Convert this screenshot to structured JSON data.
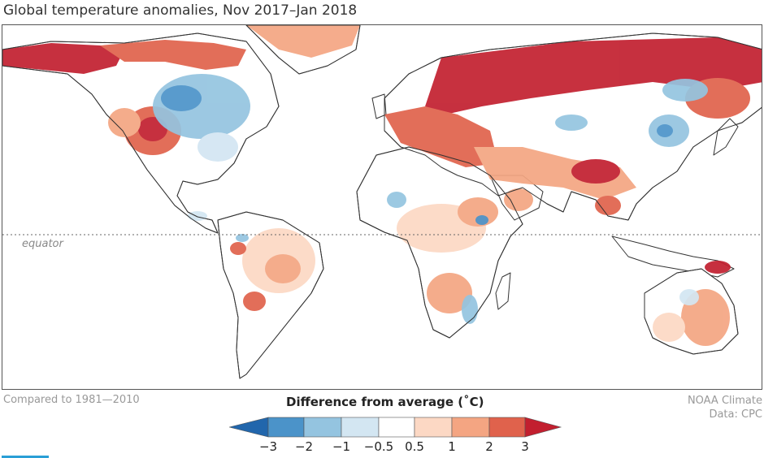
{
  "title": "Global temperature anomalies, Nov 2017–Jan 2018",
  "equator_label": "equator",
  "baseline_note": "Compared to 1981—2010",
  "legend": {
    "title": "Difference from average (˚C)",
    "ticks": [
      "−3",
      "−2",
      "−1",
      "−0.5",
      "0.5",
      "1",
      "2",
      "3"
    ],
    "colors": {
      "minus3": "#2166ac",
      "minus2": "#4b93c9",
      "minus1": "#94c4e0",
      "minus05": "#d3e6f2",
      "neutral": "#ffffff",
      "plus05": "#fcd8c4",
      "plus1": "#f4a582",
      "plus2": "#e0624c",
      "plus3": "#c21f2f"
    }
  },
  "credit": {
    "line1": "NOAA Climate",
    "line2": "Data: CPC"
  }
}
